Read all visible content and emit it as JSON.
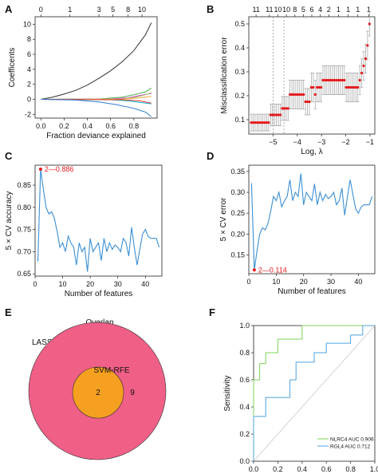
{
  "panels": {
    "A": {
      "label": "A"
    },
    "B": {
      "label": "B"
    },
    "C": {
      "label": "C"
    },
    "D": {
      "label": "D"
    },
    "E": {
      "label": "E"
    },
    "F": {
      "label": "F"
    }
  },
  "chart_data": [
    {
      "id": "A",
      "type": "line",
      "xlabel": "Fraction deviance explained",
      "ylabel": "Coefficents",
      "xlim": [
        -0.05,
        1.0
      ],
      "ylim": [
        -2.5,
        11.0
      ],
      "xticks": [
        0.0,
        0.2,
        0.4,
        0.6,
        0.8
      ],
      "yticks": [
        -2,
        0,
        2,
        4,
        6,
        8,
        10
      ],
      "top_ticks": [
        {
          "x": 0.0,
          "label": "0"
        },
        {
          "x": 0.25,
          "label": "1"
        },
        {
          "x": 0.5,
          "label": "3"
        },
        {
          "x": 0.62,
          "label": "5"
        },
        {
          "x": 0.75,
          "label": "8"
        },
        {
          "x": 0.87,
          "label": "10"
        }
      ],
      "series": [
        {
          "color": "#333333",
          "x": [
            0,
            0.1,
            0.2,
            0.3,
            0.4,
            0.5,
            0.6,
            0.7,
            0.8,
            0.9,
            0.95
          ],
          "y": [
            0,
            0.3,
            0.7,
            1.2,
            1.9,
            2.8,
            3.8,
            5.0,
            6.5,
            8.6,
            10.2
          ]
        },
        {
          "color": "#4caf50",
          "x": [
            0,
            0.5,
            0.7,
            0.8,
            0.9,
            0.95
          ],
          "y": [
            0,
            0.05,
            0.3,
            0.6,
            1.0,
            1.5
          ]
        },
        {
          "color": "#cc33cc",
          "x": [
            0,
            0.6,
            0.75,
            0.85,
            0.95
          ],
          "y": [
            0,
            0.05,
            0.2,
            0.5,
            0.8
          ]
        },
        {
          "color": "#aad26b",
          "x": [
            0,
            0.7,
            0.82,
            0.9,
            0.95
          ],
          "y": [
            0,
            0.05,
            0.3,
            0.6,
            0.9
          ]
        },
        {
          "color": "#f2a93b",
          "x": [
            0,
            0.7,
            0.85,
            0.95
          ],
          "y": [
            0,
            0.02,
            0.2,
            0.4
          ]
        },
        {
          "color": "#00bcd4",
          "x": [
            0,
            0.6,
            0.75,
            0.85,
            0.95
          ],
          "y": [
            0,
            -0.05,
            -0.2,
            -0.4,
            -0.6
          ]
        },
        {
          "color": "#e53935",
          "x": [
            0,
            0.7,
            0.85,
            0.95
          ],
          "y": [
            0,
            -0.05,
            -0.2,
            -0.5
          ]
        },
        {
          "color": "#2e7dd1",
          "x": [
            0,
            0.3,
            0.5,
            0.65,
            0.8,
            0.9,
            0.95
          ],
          "y": [
            0,
            -0.1,
            -0.35,
            -0.7,
            -1.2,
            -1.7,
            -2.3
          ]
        }
      ]
    },
    {
      "id": "B",
      "type": "scatter",
      "xlabel": "Log, λ",
      "ylabel": "Misclassification error",
      "xlim": [
        -6.0,
        -0.8
      ],
      "ylim": [
        0.04,
        0.53
      ],
      "xticks": [
        -5,
        -4,
        -3,
        -2,
        -1
      ],
      "yticks": [
        0.1,
        0.2,
        0.3,
        0.4,
        0.5
      ],
      "top_ticks": [
        {
          "x": -5.7,
          "label": "11"
        },
        {
          "x": -5.15,
          "label": "11"
        },
        {
          "x": -4.8,
          "label": "10"
        },
        {
          "x": -4.45,
          "label": "10"
        },
        {
          "x": -4.1,
          "label": "8"
        },
        {
          "x": -3.75,
          "label": "5"
        },
        {
          "x": -3.4,
          "label": "6"
        },
        {
          "x": -3.05,
          "label": "4"
        },
        {
          "x": -2.7,
          "label": "2"
        },
        {
          "x": -2.3,
          "label": "1"
        },
        {
          "x": -1.9,
          "label": "1"
        },
        {
          "x": -1.5,
          "label": "1"
        },
        {
          "x": -1.05,
          "label": "1"
        }
      ],
      "vlines": [
        -5.0,
        -4.55
      ],
      "point_color": "#e41a1c",
      "error_color": "#aaaaaa",
      "x": [
        -5.9,
        -5.82,
        -5.74,
        -5.66,
        -5.58,
        -5.5,
        -5.42,
        -5.34,
        -5.26,
        -5.18,
        -5.1,
        -5.02,
        -4.94,
        -4.86,
        -4.78,
        -4.7,
        -4.62,
        -4.54,
        -4.46,
        -4.38,
        -4.3,
        -4.22,
        -4.14,
        -4.06,
        -3.98,
        -3.9,
        -3.82,
        -3.74,
        -3.66,
        -3.58,
        -3.5,
        -3.42,
        -3.34,
        -3.26,
        -3.18,
        -3.1,
        -3.02,
        -2.94,
        -2.86,
        -2.78,
        -2.7,
        -2.62,
        -2.54,
        -2.46,
        -2.38,
        -2.3,
        -2.22,
        -2.14,
        -2.06,
        -1.98,
        -1.9,
        -1.82,
        -1.74,
        -1.66,
        -1.58,
        -1.5,
        -1.42,
        -1.34,
        -1.26,
        -1.18,
        -1.1,
        -1.02
      ],
      "y": [
        0.088,
        0.088,
        0.088,
        0.088,
        0.088,
        0.088,
        0.088,
        0.088,
        0.088,
        0.088,
        0.12,
        0.12,
        0.12,
        0.12,
        0.12,
        0.12,
        0.147,
        0.147,
        0.147,
        0.147,
        0.205,
        0.205,
        0.205,
        0.205,
        0.205,
        0.205,
        0.205,
        0.205,
        0.175,
        0.175,
        0.175,
        0.235,
        0.235,
        0.205,
        0.235,
        0.235,
        0.235,
        0.265,
        0.265,
        0.265,
        0.265,
        0.265,
        0.265,
        0.265,
        0.265,
        0.265,
        0.265,
        0.265,
        0.265,
        0.235,
        0.235,
        0.235,
        0.235,
        0.235,
        0.235,
        0.235,
        0.265,
        0.295,
        0.325,
        0.355,
        0.41,
        0.5
      ],
      "err": [
        0.035,
        0.035,
        0.035,
        0.035,
        0.035,
        0.035,
        0.035,
        0.035,
        0.035,
        0.035,
        0.045,
        0.045,
        0.045,
        0.045,
        0.045,
        0.045,
        0.05,
        0.05,
        0.05,
        0.05,
        0.06,
        0.06,
        0.06,
        0.06,
        0.06,
        0.06,
        0.06,
        0.06,
        0.055,
        0.055,
        0.055,
        0.06,
        0.06,
        0.06,
        0.06,
        0.06,
        0.06,
        0.06,
        0.06,
        0.06,
        0.06,
        0.06,
        0.06,
        0.06,
        0.06,
        0.06,
        0.06,
        0.06,
        0.06,
        0.06,
        0.06,
        0.06,
        0.06,
        0.06,
        0.06,
        0.06,
        0.06,
        0.06,
        0.06,
        0.06,
        0.06,
        0.05
      ]
    },
    {
      "id": "C",
      "type": "line",
      "xlabel": "Number of features",
      "ylabel": "5 × CV accuracy",
      "xlim": [
        0,
        46
      ],
      "ylim": [
        0.645,
        0.895
      ],
      "xticks": [
        0,
        10,
        20,
        30,
        40
      ],
      "yticks": [
        0.65,
        0.7,
        0.75,
        0.8,
        0.85
      ],
      "line_color": "#3a8fd4",
      "annotation": {
        "x": 2,
        "y": 0.886,
        "text": "2—0.886",
        "color": "#e41a1c"
      },
      "x": [
        1,
        2,
        3,
        4,
        5,
        6,
        7,
        8,
        9,
        10,
        11,
        12,
        13,
        14,
        15,
        16,
        17,
        18,
        19,
        20,
        21,
        22,
        23,
        24,
        25,
        26,
        27,
        28,
        29,
        30,
        31,
        32,
        33,
        34,
        35,
        36,
        37,
        38,
        39,
        40,
        41,
        42,
        43,
        44,
        45
      ],
      "y": [
        0.678,
        0.886,
        0.84,
        0.8,
        0.785,
        0.79,
        0.775,
        0.745,
        0.71,
        0.72,
        0.7,
        0.735,
        0.72,
        0.71,
        0.67,
        0.72,
        0.7,
        0.71,
        0.655,
        0.73,
        0.7,
        0.71,
        0.72,
        0.68,
        0.73,
        0.7,
        0.72,
        0.705,
        0.715,
        0.71,
        0.7,
        0.73,
        0.72,
        0.69,
        0.755,
        0.71,
        0.67,
        0.705,
        0.74,
        0.75,
        0.735,
        0.73,
        0.73,
        0.73,
        0.71
      ]
    },
    {
      "id": "D",
      "type": "line",
      "xlabel": "Number of features",
      "ylabel": "5 × CV error",
      "xlim": [
        0,
        46
      ],
      "ylim": [
        0.105,
        0.365
      ],
      "xticks": [
        0,
        10,
        20,
        30,
        40
      ],
      "yticks": [
        0.15,
        0.2,
        0.25,
        0.3,
        0.35
      ],
      "line_color": "#3a8fd4",
      "annotation": {
        "x": 2,
        "y": 0.114,
        "text": "2—0.114",
        "color": "#e41a1c"
      },
      "x": [
        1,
        2,
        3,
        4,
        5,
        6,
        7,
        8,
        9,
        10,
        11,
        12,
        13,
        14,
        15,
        16,
        17,
        18,
        19,
        20,
        21,
        22,
        23,
        24,
        25,
        26,
        27,
        28,
        29,
        30,
        31,
        32,
        33,
        34,
        35,
        36,
        37,
        38,
        39,
        40,
        41,
        42,
        43,
        44,
        45
      ],
      "y": [
        0.322,
        0.114,
        0.16,
        0.2,
        0.215,
        0.21,
        0.225,
        0.255,
        0.29,
        0.28,
        0.3,
        0.265,
        0.28,
        0.29,
        0.33,
        0.28,
        0.3,
        0.29,
        0.345,
        0.27,
        0.3,
        0.29,
        0.28,
        0.32,
        0.27,
        0.3,
        0.28,
        0.295,
        0.285,
        0.29,
        0.3,
        0.27,
        0.28,
        0.31,
        0.245,
        0.29,
        0.33,
        0.295,
        0.26,
        0.25,
        0.265,
        0.27,
        0.27,
        0.27,
        0.29
      ]
    },
    {
      "id": "E",
      "type": "venn",
      "sets": [
        {
          "name": "LASSO",
          "only": "9",
          "color": "#ef5f86"
        },
        {
          "name": "SVM-RFE",
          "only": "2",
          "color": "#f5a020"
        }
      ],
      "overlap_label": "Overlap"
    },
    {
      "id": "F",
      "type": "line",
      "xlabel": "1-Specificity",
      "ylabel": "Sensitivity",
      "xlim": [
        0,
        1
      ],
      "ylim": [
        0,
        1
      ],
      "xticks": [
        0.0,
        0.2,
        0.4,
        0.6,
        0.8,
        1.0
      ],
      "yticks": [
        0.0,
        0.2,
        0.4,
        0.6,
        0.8,
        1.0
      ],
      "series": [
        {
          "name": "NLRC4 AUC 0.906",
          "color": "#7dd65a",
          "x": [
            0,
            0,
            0.05,
            0.05,
            0.1,
            0.1,
            0.2,
            0.2,
            0.4,
            0.4,
            1.0
          ],
          "y": [
            0,
            0.6,
            0.6,
            0.72,
            0.72,
            0.8,
            0.8,
            0.9,
            0.9,
            1.0,
            1.0
          ]
        },
        {
          "name": "RGL4 AUC 0.712",
          "color": "#4da3e0",
          "x": [
            0,
            0,
            0.1,
            0.1,
            0.3,
            0.3,
            0.35,
            0.35,
            0.5,
            0.5,
            0.6,
            0.6,
            0.8,
            0.8,
            0.9,
            0.9,
            1.0
          ],
          "y": [
            0,
            0.33,
            0.33,
            0.47,
            0.47,
            0.6,
            0.6,
            0.73,
            0.73,
            0.8,
            0.8,
            0.87,
            0.87,
            0.93,
            0.93,
            1.0,
            1.0
          ]
        }
      ],
      "diagonal_color": "#c8c8c8"
    }
  ]
}
